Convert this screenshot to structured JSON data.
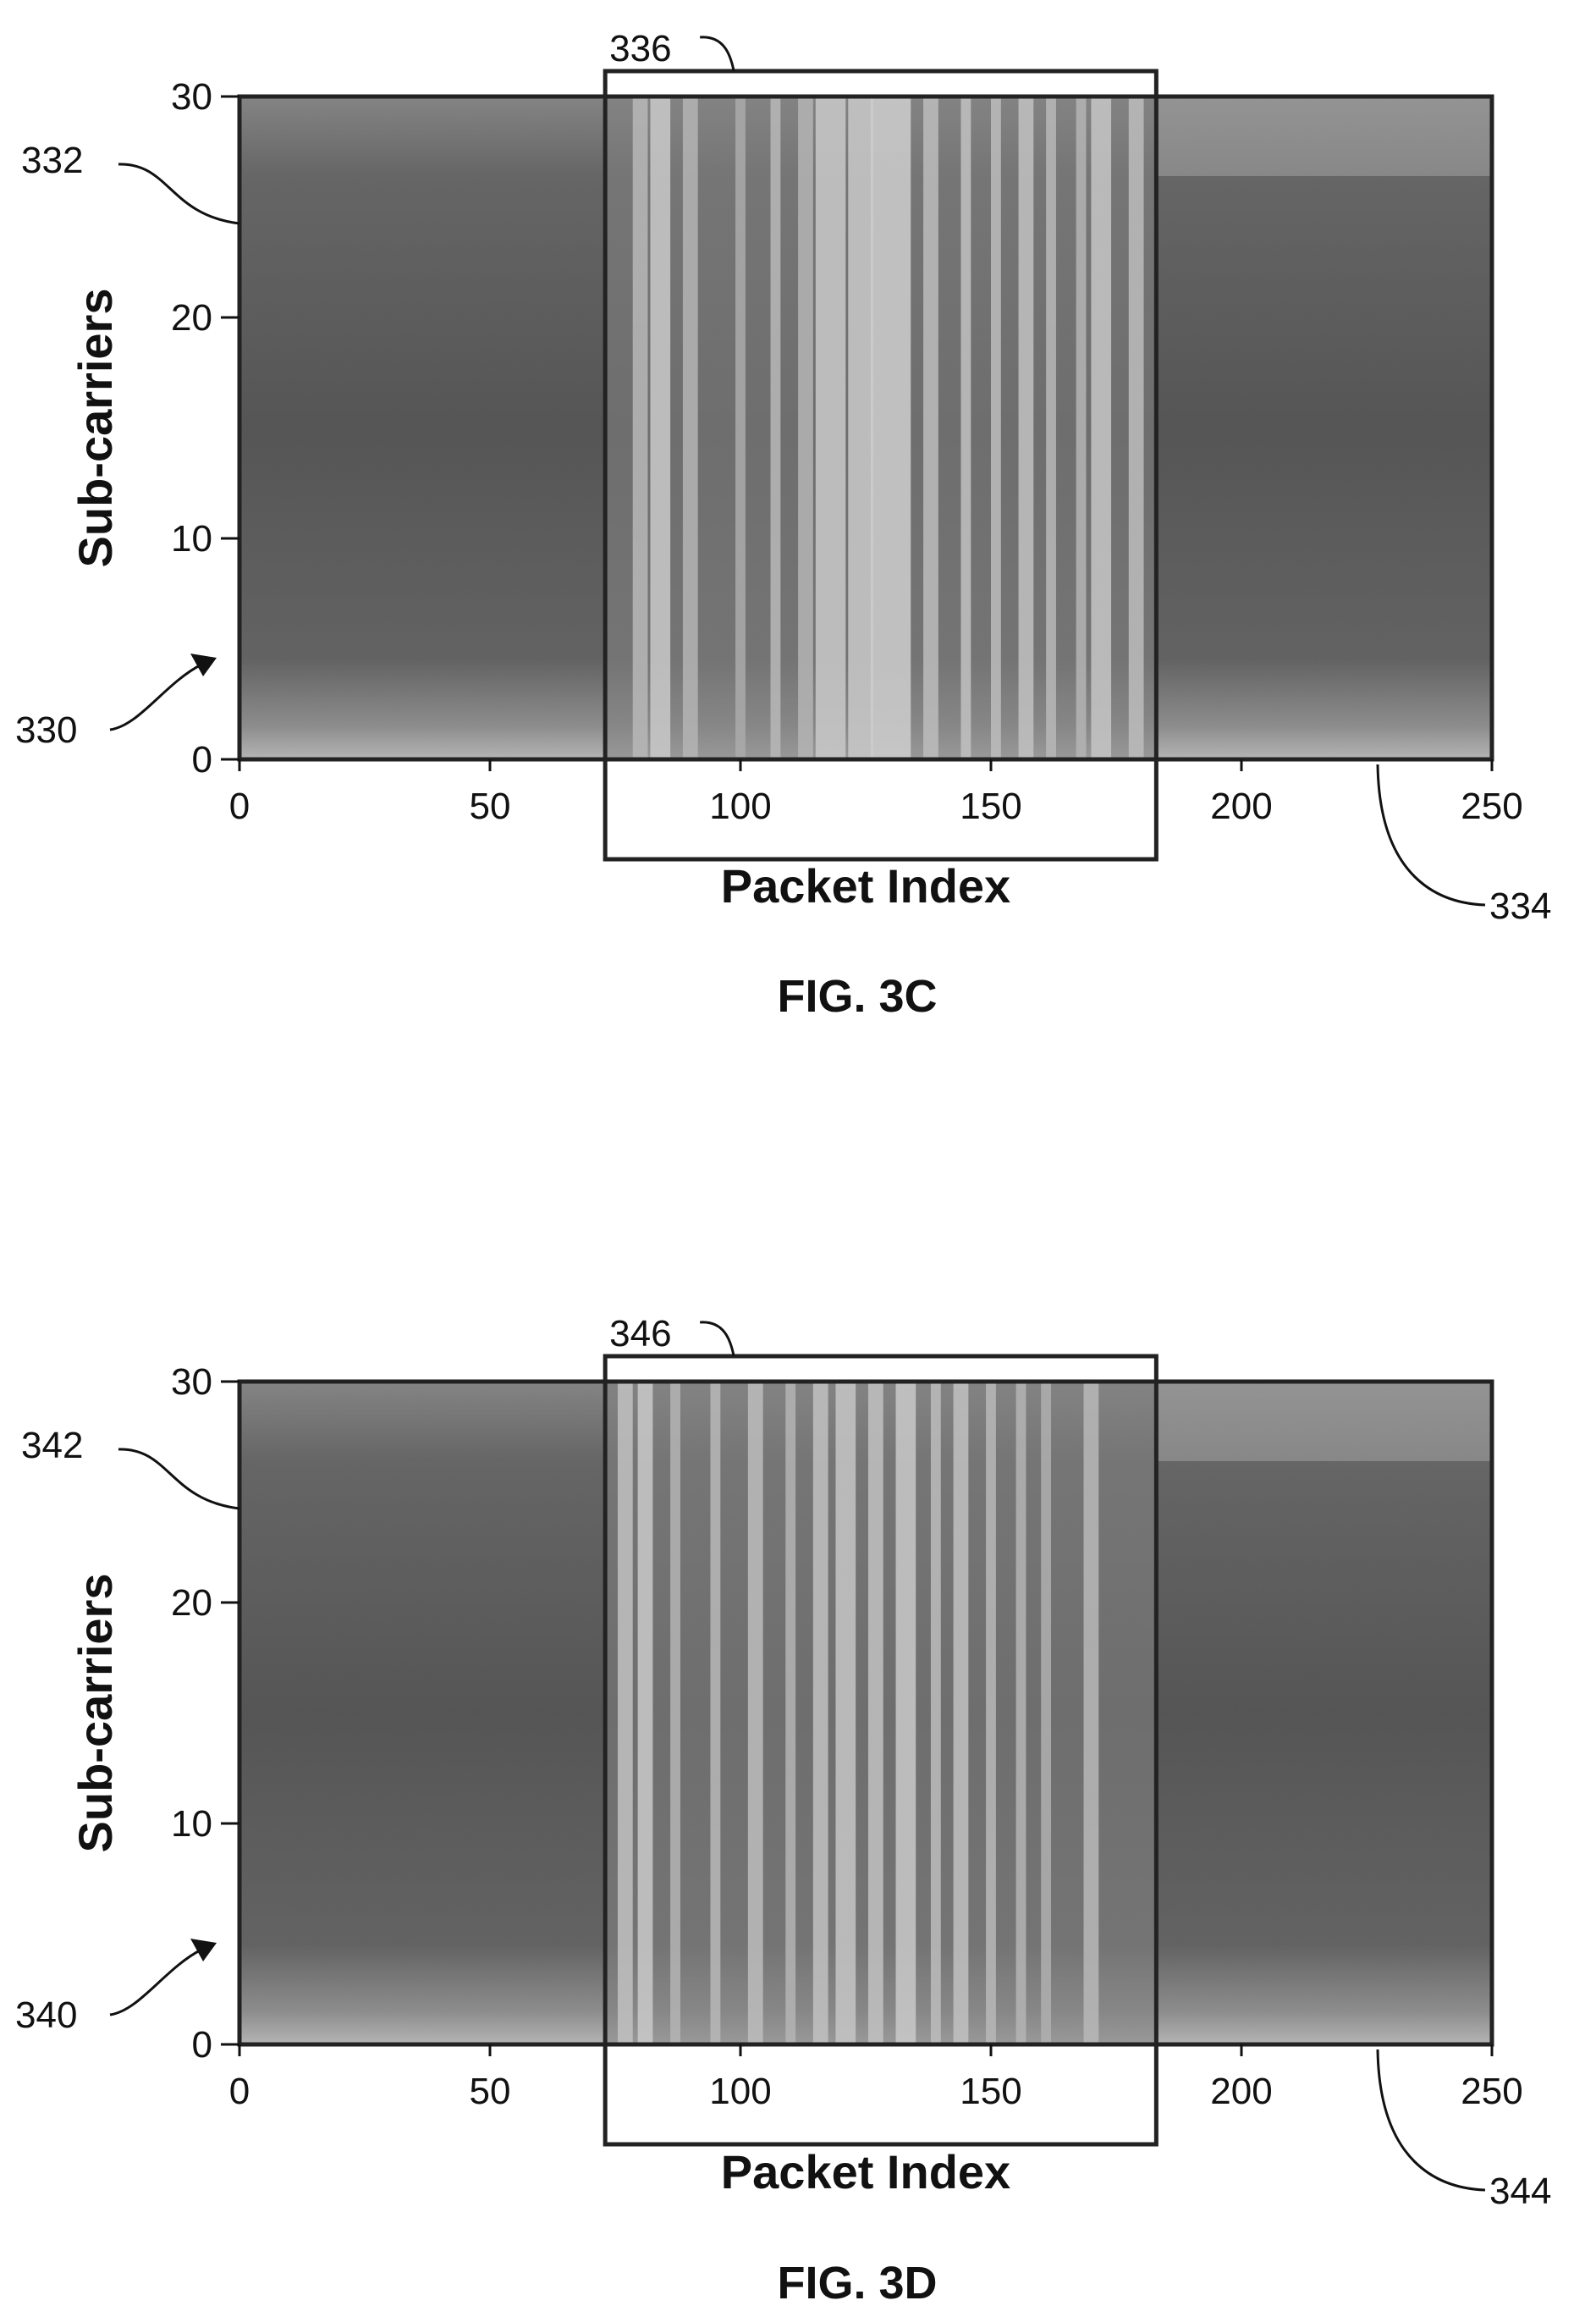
{
  "chart_data": [
    {
      "type": "heatmap",
      "caption": "FIG. 3C",
      "xlabel": "Packet Index",
      "ylabel": "Sub-carriers",
      "xlim": [
        0,
        250
      ],
      "ylim": [
        0,
        30
      ],
      "xticks": [
        "0",
        "50",
        "100",
        "150",
        "200",
        "250"
      ],
      "yticks": [
        "0",
        "10",
        "20",
        "30"
      ],
      "highlight_x": [
        73,
        183
      ],
      "colormap": "grayscale",
      "refs": {
        "highlight": "336",
        "top_left": "332",
        "bottom_left": "330",
        "bottom_right": "334"
      },
      "bright_columns": [
        {
          "x": 80,
          "width": 3,
          "level": 0.75
        },
        {
          "x": 84,
          "width": 4,
          "level": 0.95
        },
        {
          "x": 90,
          "width": 3,
          "level": 0.7
        },
        {
          "x": 100,
          "width": 2,
          "level": 0.6
        },
        {
          "x": 107,
          "width": 2,
          "level": 0.75
        },
        {
          "x": 113,
          "width": 3,
          "level": 0.7
        },
        {
          "x": 118,
          "width": 6,
          "level": 0.95
        },
        {
          "x": 124,
          "width": 5,
          "level": 0.95
        },
        {
          "x": 130,
          "width": 8,
          "level": 1.0
        },
        {
          "x": 138,
          "width": 3,
          "level": 0.8
        },
        {
          "x": 145,
          "width": 2,
          "level": 0.85
        },
        {
          "x": 151,
          "width": 2,
          "level": 0.8
        },
        {
          "x": 157,
          "width": 3,
          "level": 0.85
        },
        {
          "x": 162,
          "width": 2,
          "level": 0.75
        },
        {
          "x": 168,
          "width": 2,
          "level": 0.7
        },
        {
          "x": 172,
          "width": 4,
          "level": 0.9
        },
        {
          "x": 179,
          "width": 3,
          "level": 0.8
        }
      ]
    },
    {
      "type": "heatmap",
      "caption": "FIG. 3D",
      "xlabel": "Packet Index",
      "ylabel": "Sub-carriers",
      "xlim": [
        0,
        250
      ],
      "ylim": [
        0,
        30
      ],
      "xticks": [
        "0",
        "50",
        "100",
        "150",
        "200",
        "250"
      ],
      "yticks": [
        "0",
        "10",
        "20",
        "30"
      ],
      "highlight_x": [
        73,
        183
      ],
      "colormap": "grayscale",
      "refs": {
        "highlight": "346",
        "top_left": "342",
        "bottom_left": "340",
        "bottom_right": "344"
      },
      "bright_columns": [
        {
          "x": 77,
          "width": 3,
          "level": 0.85
        },
        {
          "x": 81,
          "width": 3,
          "level": 0.95
        },
        {
          "x": 87,
          "width": 2,
          "level": 0.7
        },
        {
          "x": 95,
          "width": 2,
          "level": 0.75
        },
        {
          "x": 103,
          "width": 3,
          "level": 0.8
        },
        {
          "x": 110,
          "width": 2,
          "level": 0.7
        },
        {
          "x": 116,
          "width": 3,
          "level": 0.85
        },
        {
          "x": 121,
          "width": 4,
          "level": 0.9
        },
        {
          "x": 127,
          "width": 3,
          "level": 0.85
        },
        {
          "x": 133,
          "width": 4,
          "level": 0.95
        },
        {
          "x": 139,
          "width": 2,
          "level": 0.8
        },
        {
          "x": 144,
          "width": 3,
          "level": 0.85
        },
        {
          "x": 150,
          "width": 2,
          "level": 0.75
        },
        {
          "x": 156,
          "width": 2,
          "level": 0.7
        },
        {
          "x": 161,
          "width": 2,
          "level": 0.65
        },
        {
          "x": 170,
          "width": 3,
          "level": 0.75
        }
      ]
    }
  ]
}
